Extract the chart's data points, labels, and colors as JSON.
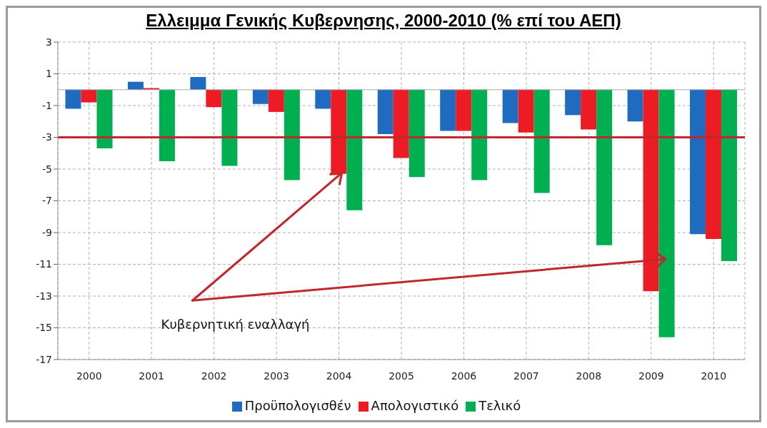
{
  "chart_data": {
    "type": "bar",
    "title": "Ελλειμμα Γενικής Κυβερνησης, 2000-2010 (% επί του ΑΕΠ)",
    "categories": [
      "2000",
      "2001",
      "2002",
      "2003",
      "2004",
      "2005",
      "2006",
      "2007",
      "2008",
      "2009",
      "2010"
    ],
    "series": [
      {
        "name": "Προϋπολογισθέν",
        "color": "#1f6bbf",
        "values": [
          -1.2,
          0.5,
          0.8,
          -0.9,
          -1.2,
          -2.8,
          -2.6,
          -2.1,
          -1.6,
          -2.0,
          -9.1
        ]
      },
      {
        "name": "Απολογιστικό",
        "color": "#ed1c24",
        "values": [
          -0.8,
          0.1,
          -1.1,
          -1.4,
          -5.3,
          -4.3,
          -2.6,
          -2.7,
          -2.5,
          -12.7,
          -9.4
        ]
      },
      {
        "name": "Τελικό",
        "color": "#00b050",
        "values": [
          -3.7,
          -4.5,
          -4.8,
          -5.7,
          -7.6,
          -5.5,
          -5.7,
          -6.5,
          -9.8,
          -15.6,
          -10.8
        ]
      }
    ],
    "ylim": [
      -17,
      3
    ],
    "yticks": [
      3,
      1,
      -1,
      -3,
      -5,
      -7,
      -9,
      -11,
      -13,
      -15,
      -17
    ],
    "grid": true,
    "legend": "bottom",
    "ref_lines": [
      {
        "axis": "y",
        "value": -3,
        "color": "#c0282d"
      }
    ],
    "annotations": [
      {
        "text": "Κυβερνητική εναλλαγή",
        "x": "2004",
        "y": -5.3
      }
    ]
  }
}
